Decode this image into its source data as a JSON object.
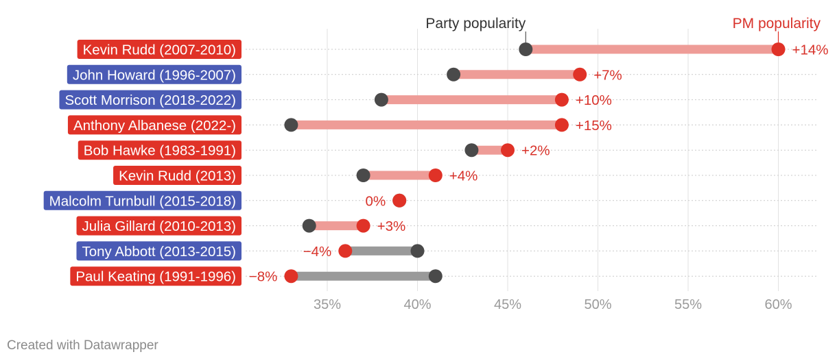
{
  "chart_data": {
    "type": "dot-range",
    "legend": {
      "party_label": "Party popularity",
      "pm_label": "PM popularity"
    },
    "x_ticks": [
      {
        "value": 35,
        "label": "35%"
      },
      {
        "value": 40,
        "label": "40%"
      },
      {
        "value": 45,
        "label": "45%"
      },
      {
        "value": 50,
        "label": "50%"
      },
      {
        "value": 55,
        "label": "55%"
      },
      {
        "value": 60,
        "label": "60%"
      }
    ],
    "xlim": [
      32,
      63
    ],
    "colors": {
      "labor": "#e03227",
      "liberal": "#4a5bb5",
      "pm_dot": "#e03227",
      "party_dot": "#4a4a4a",
      "positive_bar": "#ee9c97",
      "negative_bar": "#9a9a9a",
      "value_positive": "#d8322a",
      "value_negative": "#d8322a"
    },
    "rows": [
      {
        "label": "Kevin Rudd (2007-2010)",
        "party": "labor",
        "party_pop": 46,
        "pm_pop": 60,
        "diff_label": "+14%"
      },
      {
        "label": "John Howard (1996-2007)",
        "party": "liberal",
        "party_pop": 42,
        "pm_pop": 49,
        "diff_label": "+7%"
      },
      {
        "label": "Scott Morrison (2018-2022)",
        "party": "liberal",
        "party_pop": 38,
        "pm_pop": 48,
        "diff_label": "+10%"
      },
      {
        "label": "Anthony Albanese (2022-)",
        "party": "labor",
        "party_pop": 33,
        "pm_pop": 48,
        "diff_label": "+15%"
      },
      {
        "label": "Bob Hawke (1983-1991)",
        "party": "labor",
        "party_pop": 43,
        "pm_pop": 45,
        "diff_label": "+2%"
      },
      {
        "label": "Kevin Rudd (2013)",
        "party": "labor",
        "party_pop": 37,
        "pm_pop": 41,
        "diff_label": "+4%"
      },
      {
        "label": "Malcolm Turnbull (2015-2018)",
        "party": "liberal",
        "party_pop": 39,
        "pm_pop": 39,
        "diff_label": "0%"
      },
      {
        "label": "Julia Gillard (2010-2013)",
        "party": "labor",
        "party_pop": 34,
        "pm_pop": 37,
        "diff_label": "+3%"
      },
      {
        "label": "Tony Abbott (2013-2015)",
        "party": "liberal",
        "party_pop": 40,
        "pm_pop": 36,
        "diff_label": "−4%"
      },
      {
        "label": "Paul Keating (1991-1996)",
        "party": "labor",
        "party_pop": 41,
        "pm_pop": 33,
        "diff_label": "−8%"
      }
    ]
  },
  "footer": {
    "credit": "Created with Datawrapper"
  }
}
